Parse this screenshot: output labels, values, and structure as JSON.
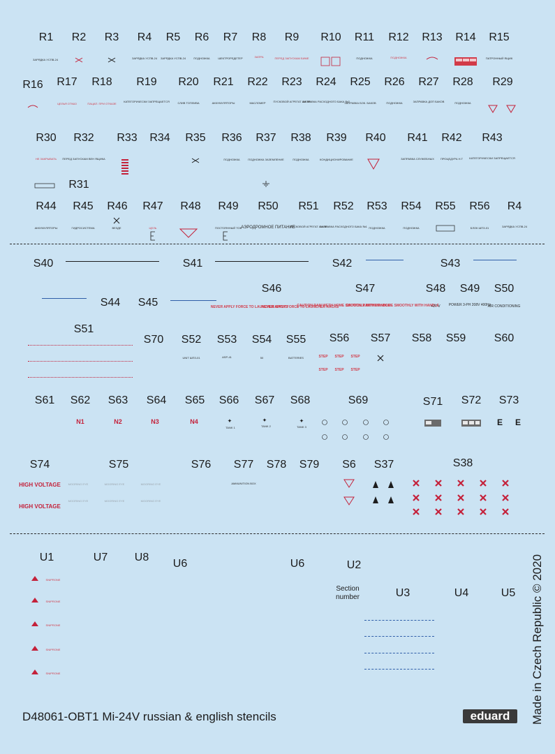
{
  "sheet": {
    "footer_title": "D48061-OBT1 Mi-24V russian & english stencils",
    "brand": "eduard",
    "made_in": "Made in Czech Republic © 2020",
    "section_number_label": "Section\nnumber"
  },
  "labels": {
    "row_r1": [
      "R1",
      "R2",
      "R3",
      "R4",
      "R5",
      "R6",
      "R7",
      "R8",
      "R9",
      "R10",
      "R11",
      "R12",
      "R13",
      "R14",
      "R15"
    ],
    "row_r2": [
      "R16",
      "R17",
      "R18",
      "R19",
      "R20",
      "R21",
      "R22",
      "R23",
      "R24",
      "R25",
      "R26",
      "R27",
      "R28",
      "R29"
    ],
    "row_r3": [
      "R30",
      "R32",
      "R33",
      "R34",
      "R35",
      "R36",
      "R37",
      "R38",
      "R39",
      "R40",
      "R41",
      "R42",
      "R43"
    ],
    "r31": "R31",
    "row_r4": [
      "R44",
      "R45",
      "R46",
      "R47",
      "R48",
      "R49",
      "R50",
      "R51",
      "R52",
      "R53",
      "R54",
      "R55",
      "R56",
      "R4"
    ],
    "row_s1": [
      "S40",
      "S41",
      "S42",
      "S43"
    ],
    "row_s2": [
      "S44",
      "S45",
      "S46",
      "S47",
      "S48",
      "S49",
      "S50"
    ],
    "row_s3a": "S51",
    "row_s3": [
      "S70",
      "S52",
      "S53",
      "S54",
      "S55",
      "S56",
      "S57",
      "S58",
      "S59",
      "S60"
    ],
    "row_s4": [
      "S61",
      "S62",
      "S63",
      "S64",
      "S65",
      "S66",
      "S67",
      "S68",
      "S69",
      "S71",
      "S72",
      "S73"
    ],
    "row_s5": [
      "S74",
      "S75",
      "S76",
      "S77",
      "S78",
      "S79",
      "S6",
      "S37",
      "S38"
    ],
    "row_u1": [
      "U1",
      "U7",
      "U8",
      "U6",
      "U6",
      "U2"
    ],
    "row_u2": [
      "U3",
      "U4",
      "U5"
    ]
  },
  "stencils": {
    "r_row1": [
      "ЗАРЯДКА УСПВ-24",
      "",
      "",
      "ЗАРЯДКА УСПВ-24",
      "ЗАРЯДКА УСПВ-24",
      "ПОДНОЖКА",
      "ШЕКТРОРЕДЕТЕР",
      "ЗАПРА",
      "ПЕРЕД ЗАПУСКАМ БИМЕ",
      "",
      "ПОДНОЖКА",
      "ПОДНОЖКА",
      "",
      "",
      "ПАТРОННЫЙ ЯЩИК"
    ],
    "r_row2": [
      "",
      "ЦЕЛЬЯ ОТКАЗ",
      "ПАЦАП. ПРИ ОТКАЗЕ",
      "КАТЕГОРИЧЕСКИ ЗАПРЕЩАЕТСЯ",
      "СЛИВ ТОПЛИВА",
      "АККУМУЛЯТОРЫ",
      "МАСЛОМЕР",
      "ПУСКОВОЙ АГРЕГАТ АИ-9В",
      "ЗАПРАВКА РАСХОДНОГО БАКА №2",
      "ЗАПРАВКА БОК. БАКОВ",
      "ПОДНОЖКА",
      "ЗАПРАВКА ДОП БАКОВ",
      "ПОДНОЖКА",
      ""
    ],
    "r_row3": [
      "НЕ ЗАКРЫВАТЬ",
      "ПЕРЕД ЗАПУСКАМ ВЕН ЯЩИКА",
      "",
      "",
      "",
      "ПОДНОЖКА",
      "ПОДНОЖКА ЗАЗЕМЛЕНИЕ",
      "ПОДНОЖКА",
      "КОНДИЦИОНИРОВАНИЕ",
      "",
      "ЗАПРАВКА СЛУЖЕБНЫХ",
      "ПРОЦЕДУРА Н.Т",
      "КАТЕГОРИЧЕСКИ ЗАПРЕЩАЕТСЯ"
    ],
    "r_row4": [
      "АККУМУЛЯТОРЫ",
      "ГИДРОСИСТЕМА",
      "ВЕЗДЕ",
      "ЦЕЛЬ",
      "",
      "ПОСТОЯННЫЙ ТОК",
      "АЭРОДРОМНОЕ ПИТАНИЕ",
      "ПУСКОВОЙ АГРЕГАТ АИ-9В",
      "ЗАПРАВКА РАСХОДНОГО БАКА №1",
      "ПОДНОЖКА",
      "ПОДНОЖКА",
      "",
      "БЛОК ШПЗ-01",
      "ЗАРЯДКА УСПВ-24"
    ],
    "s46": "NEVER APPLY FORCE TO LAUNCHER RACKS",
    "s47": "CAUTION RAM WETH HOME SMOOTHLY WITH HANDLE",
    "s48": "+27 V",
    "s49": "POWER 3-PH 208V 400Hz",
    "s50": "AIR CONDITIONING",
    "s52": "UNIT ШПЗ-01",
    "s53": "ASP-41",
    "s54": "50",
    "s55": "BATTERIES",
    "s56": "STEP",
    "s62": "N1",
    "s63": "N2",
    "s64": "N3",
    "s65": "N4",
    "s66": "TANK 1",
    "s67": "TANK 2",
    "s68": "TANK 3",
    "s74": "HIGH VOLTAGE",
    "s75": "MOORING EYE",
    "s77": "AMMUNITION BOX",
    "u1": "SNIPRONE"
  },
  "colors": {
    "background": "#cbe3f3",
    "stencil_red": "#c4213a",
    "stencil_blue": "#2f5ea8",
    "text": "#1b1b1b"
  }
}
